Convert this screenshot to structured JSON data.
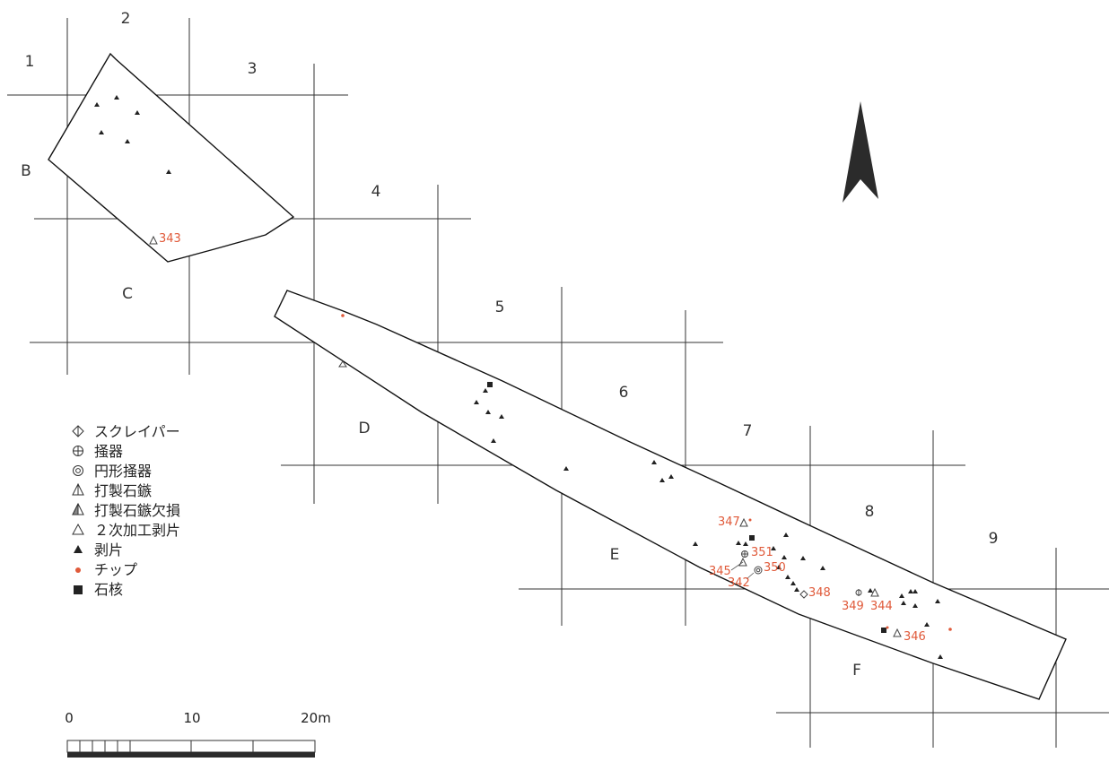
{
  "grid": {
    "columns": [
      "1",
      "2",
      "3",
      "4",
      "5",
      "6",
      "7",
      "8",
      "9"
    ],
    "rows": [
      "B",
      "C",
      "D",
      "E",
      "F"
    ]
  },
  "legend": [
    {
      "symbol": "scraper",
      "label": "スクレイパー"
    },
    {
      "symbol": "end-scraper",
      "label": "掻器"
    },
    {
      "symbol": "round-scraper",
      "label": "円形掻器"
    },
    {
      "symbol": "arrowhead",
      "label": "打製石鏃"
    },
    {
      "symbol": "broken-arrowhead",
      "label": "打製石鏃欠損"
    },
    {
      "symbol": "retouched-flake",
      "label": "２次加工剥片"
    },
    {
      "symbol": "flake",
      "label": "剥片"
    },
    {
      "symbol": "chip",
      "label": "チップ"
    },
    {
      "symbol": "core",
      "label": "石核"
    }
  ],
  "artifact_ids": [
    "343",
    "347",
    "351",
    "345",
    "350",
    "342",
    "348",
    "349",
    "344",
    "346"
  ],
  "scale_bar": {
    "labels": [
      "0",
      "10",
      "20m"
    ],
    "length_m": 20
  },
  "north_arrow": "north-arrow-icon",
  "colors": {
    "id_label": "#e05a3a",
    "chip": "#e05a3a",
    "ink": "#222222"
  }
}
